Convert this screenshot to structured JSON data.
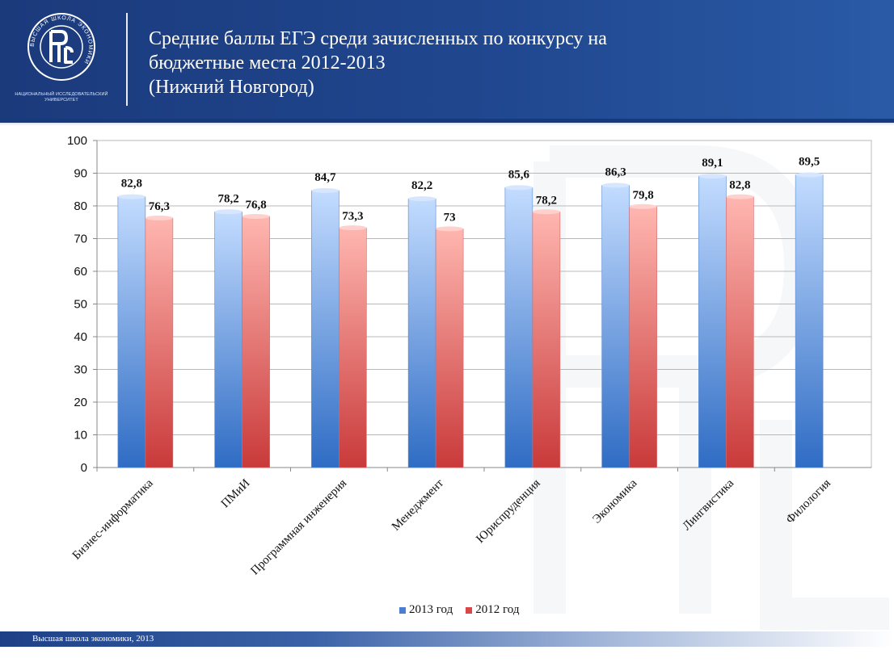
{
  "header": {
    "title_lines": [
      "Средние баллы ЕГЭ среди зачисленных по конкурсу на",
      "бюджетные места 2012-2013",
      "(Нижний Новгород)"
    ],
    "logo_ring_text": "ВЫСШАЯ ШКОЛА ЭКОНОМИКИ",
    "logo_caption": "НАЦИОНАЛЬНЫЙ ИССЛЕДОВАТЕЛЬСКИЙ УНИВЕРСИТЕТ"
  },
  "chart_data": {
    "type": "bar",
    "categories": [
      "Бизнес-информатика",
      "ПМиИ",
      "Программная инженерия",
      "Менеджмент",
      "Юриспруденция",
      "Экономика",
      "Лингвистика",
      "Филология"
    ],
    "series": [
      {
        "name": "2013 год",
        "values": [
          82.8,
          78.2,
          84.7,
          82.2,
          85.6,
          86.3,
          89.1,
          89.5
        ],
        "labels": [
          "82,8",
          "78,2",
          "84,7",
          "82,2",
          "85,6",
          "86,3",
          "89,1",
          "89,5"
        ],
        "color": "#4a7fd0"
      },
      {
        "name": "2012 год",
        "values": [
          76.3,
          76.8,
          73.3,
          73,
          78.2,
          79.8,
          82.8,
          null
        ],
        "labels": [
          "76,3",
          "76,8",
          "73,3",
          "73",
          "78,2",
          "79,8",
          "82,8",
          null
        ],
        "color": "#d84848"
      }
    ],
    "ylim": [
      0,
      100
    ],
    "yticks": [
      0,
      10,
      20,
      30,
      40,
      50,
      60,
      70,
      80,
      90,
      100
    ],
    "grid": true,
    "legend_position": "bottom-center"
  },
  "footer": {
    "text": "Высшая школа экономики, 2013"
  }
}
